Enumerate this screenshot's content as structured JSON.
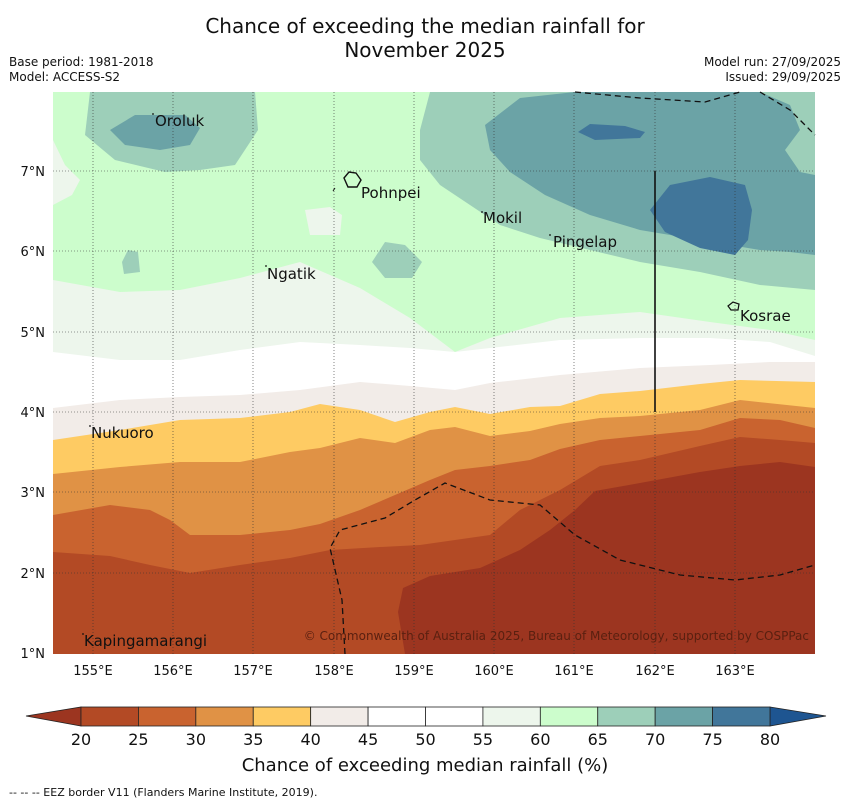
{
  "title_line1": "Chance of exceeding the median rainfall for",
  "title_line2": "November 2025",
  "base_period": "Base period: 1981-2018",
  "model": "Model: ACCESS-S2",
  "model_run": "Model run: 27/09/2025",
  "issued": "Issued: 29/09/2025",
  "places": [
    "Oroluk",
    "Pohnpei",
    "Mokil",
    "Pingelap",
    "Ngatik",
    "Kosrae",
    "Nukuoro",
    "Kapingamarangi"
  ],
  "lon_labels": [
    "155°E",
    "156°E",
    "157°E",
    "158°E",
    "159°E",
    "160°E",
    "161°E",
    "162°E",
    "163°E"
  ],
  "lat_labels": [
    "7°N",
    "6°N",
    "5°N",
    "4°N",
    "3°N",
    "2°N",
    "1°N"
  ],
  "copyright": "© Commonwealth of Australia 2025, Bureau of Meteorology, supported by COSPPac",
  "colorbar": {
    "ticks": [
      "20",
      "25",
      "30",
      "35",
      "40",
      "45",
      "50",
      "55",
      "60",
      "65",
      "70",
      "75",
      "80"
    ],
    "colors": [
      "#b34a25",
      "#c9632f",
      "#e09245",
      "#fecb63",
      "#f2ece8",
      "#ffffff",
      "#ffffff",
      "#edf6ec",
      "#ccfdcc",
      "#9dcfb9",
      "#6ba3a6",
      "#41769a"
    ],
    "low_extend": "#9c3520",
    "high_extend": "#1e5591",
    "title": "Chance of exceeding median rainfall (%)"
  },
  "footer": "--  --  -- EEZ border V11 (Flanders Marine Institute, 2019)."
}
